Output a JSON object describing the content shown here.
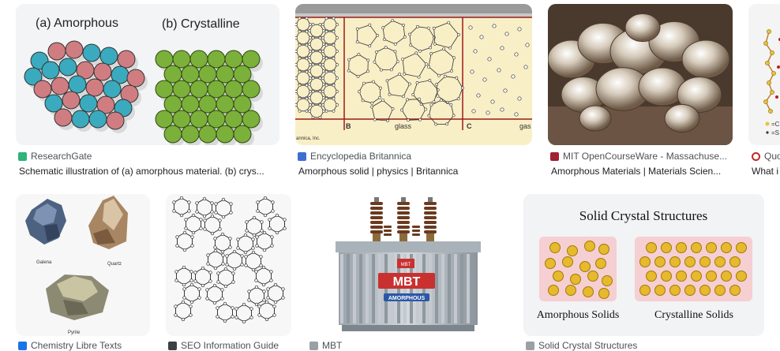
{
  "results": [
    {
      "source": "ResearchGate",
      "title": "Schematic illustration of (a) amorphous material. (b) crys...",
      "favicon_color": "#2db37b",
      "image": {
        "label_a": "(a) Amorphous",
        "label_b": "(b) Crystalline"
      }
    },
    {
      "source": "Encyclopedia Britannica",
      "title": "Amorphous solid | physics | Britannica",
      "favicon_color": "#3c6fd1",
      "image": {
        "label_b": "B",
        "label_glass": "glass",
        "label_c": "C",
        "label_gas": "gas",
        "credit": "annica, Inc."
      }
    },
    {
      "source": "MIT OpenCourseWare - Massachuse...",
      "title": "Amorphous Materials | Materials Scien...",
      "favicon_color": "#a31f34",
      "image": {}
    },
    {
      "source": "Quo",
      "title": "What i",
      "favicon_color": "#b92b27",
      "image": {
        "legend_1": "=C",
        "legend_2": "=S"
      }
    },
    {
      "source": "Chemistry Libre Texts",
      "title": "",
      "favicon_color": "#1a73e8",
      "image": {
        "galena": "Galena",
        "quartz": "Quartz",
        "pyrite": "Pyrite"
      }
    },
    {
      "source": "SEO Information Guide",
      "title": "",
      "favicon_color": "#3c4043",
      "image": {}
    },
    {
      "source": "MBT",
      "title": "",
      "favicon_color": "#9aa0a6",
      "image": {
        "brand": "MBT",
        "badge": "AMORPHOUS",
        "plate": "MBT"
      }
    },
    {
      "source": "Solid Crystal Structures",
      "title": "",
      "favicon_color": "#9aa0a6",
      "image": {
        "heading": "Solid Crystal Structures",
        "left_caption": "Amorphous Solids",
        "right_caption": "Crystalline Solids"
      }
    }
  ],
  "colors": {
    "blue_atom": "#3aaabf",
    "pink_atom": "#d07d82",
    "green_atom": "#7bb03a",
    "gold_atom": "#e7b92c",
    "pink_panel": "#f5cfd2"
  }
}
